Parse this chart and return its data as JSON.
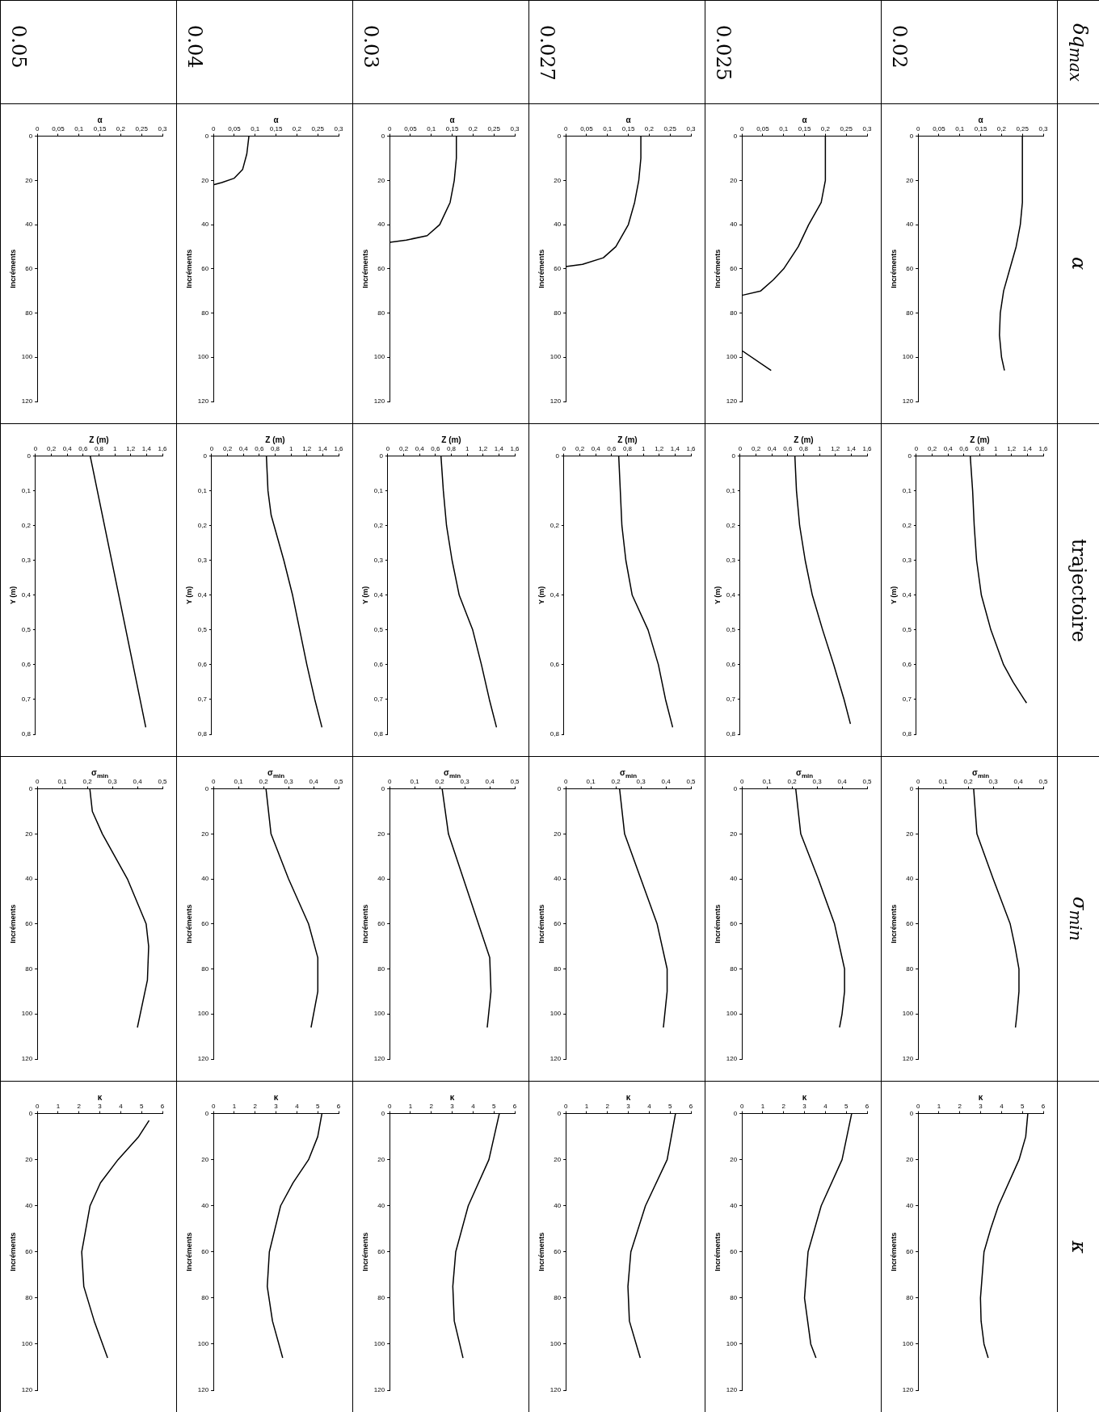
{
  "chart_data": [
    {
      "type": "other",
      "annotations": [
        "δq$_{max}$",
        "α",
        "trajectoire",
        "σ$_{min}$",
        "κ",
        "0.02",
        "0.025",
        "0.027",
        "0.03",
        "0.04",
        "0.05"
      ]
    },
    {
      "type": "line",
      "ylabel": "Incréments",
      "xlabel": "α",
      "color": "#000000",
      "ylim": [
        120,
        0
      ],
      "yticks": [
        0,
        20,
        40,
        60,
        80,
        100,
        120
      ],
      "xlim": [
        0,
        0.3
      ],
      "xticks": [
        0,
        {
          "value": 0.05,
          "label": "0,05"
        },
        {
          "value": 0.1,
          "label": "0,1"
        },
        {
          "value": 0.15,
          "label": "0,15"
        },
        {
          "value": 0.2,
          "label": "0,2"
        },
        {
          "value": 0.25,
          "label": "0,25"
        },
        {
          "value": 0.3,
          "label": "0,3"
        }
      ],
      "values": [
        0,
        30,
        40,
        50,
        60,
        70,
        80,
        90,
        100,
        106
      ],
      "x": [
        0.25,
        0.25,
        0.245,
        0.235,
        0.22,
        0.205,
        0.197,
        0.195,
        0.2,
        0.207
      ]
    },
    {
      "type": "line",
      "ylabel": "Y (m)",
      "xlabel": "Z (m)",
      "color": "#000000",
      "ylim": [
        0.8,
        0
      ],
      "yticks": [
        0,
        {
          "value": 0.1,
          "label": "0,1"
        },
        {
          "value": 0.2,
          "label": "0,2"
        },
        {
          "value": 0.3,
          "label": "0,3"
        },
        {
          "value": 0.4,
          "label": "0,4"
        },
        {
          "value": 0.5,
          "label": "0,5"
        },
        {
          "value": 0.6,
          "label": "0,6"
        },
        {
          "value": 0.7,
          "label": "0,7"
        },
        {
          "value": 0.8,
          "label": "0,8"
        }
      ],
      "xlim": [
        0,
        1.6
      ],
      "xticks": [
        0,
        {
          "value": 0.2,
          "label": "0,2"
        },
        {
          "value": 0.4,
          "label": "0,4"
        },
        {
          "value": 0.6,
          "label": "0,6"
        },
        {
          "value": 0.8,
          "label": "0,8"
        },
        1,
        {
          "value": 1.2,
          "label": "1,2"
        },
        {
          "value": 1.4,
          "label": "1,4"
        },
        {
          "value": 1.6,
          "label": "1,6"
        }
      ],
      "values": [
        0,
        0.1,
        0.2,
        0.3,
        0.4,
        0.5,
        0.6,
        0.65,
        0.7,
        0.71
      ],
      "x": [
        0.68,
        0.71,
        0.73,
        0.76,
        0.82,
        0.94,
        1.1,
        1.22,
        1.36,
        1.39
      ]
    },
    {
      "type": "line",
      "ylabel": "Incréments",
      "xlabel": "σ$_{min}$",
      "color": "#000000",
      "ylim": [
        120,
        0
      ],
      "yticks": [
        0,
        20,
        40,
        60,
        80,
        100,
        120
      ],
      "xlim": [
        0,
        0.5
      ],
      "xticks": [
        0,
        {
          "value": 0.1,
          "label": "0,1"
        },
        {
          "value": 0.2,
          "label": "0,2"
        },
        {
          "value": 0.3,
          "label": "0,3"
        },
        {
          "value": 0.4,
          "label": "0,4"
        },
        {
          "value": 0.5,
          "label": "0,5"
        }
      ],
      "values": [
        0,
        20,
        40,
        60,
        70,
        80,
        90,
        100,
        106
      ],
      "x": [
        0.222,
        0.235,
        0.3,
        0.368,
        0.387,
        0.403,
        0.403,
        0.395,
        0.389
      ]
    },
    {
      "type": "line",
      "ylabel": "Incréments",
      "xlabel": "κ",
      "color": "#000000",
      "ylim": [
        120,
        0
      ],
      "yticks": [
        0,
        20,
        40,
        60,
        80,
        100,
        120
      ],
      "xlim": [
        0,
        6
      ],
      "xticks": [
        0,
        1,
        2,
        3,
        4,
        5,
        6
      ],
      "values": [
        0,
        10,
        20,
        40,
        50,
        60,
        80,
        90,
        100,
        106
      ],
      "x": [
        5.26,
        5.16,
        4.84,
        3.85,
        3.48,
        3.16,
        2.99,
        3.02,
        3.16,
        3.36
      ]
    },
    {
      "type": "line",
      "ylabel": "Incréments",
      "xlabel": "α",
      "color": "#000000",
      "ylim": [
        120,
        0
      ],
      "yticks": [
        0,
        20,
        40,
        60,
        80,
        100,
        120
      ],
      "xlim": [
        0,
        0.3
      ],
      "xticks": [
        0,
        {
          "value": 0.05,
          "label": "0,05"
        },
        {
          "value": 0.1,
          "label": "0,1"
        },
        {
          "value": 0.15,
          "label": "0,15"
        },
        {
          "value": 0.2,
          "label": "0,2"
        },
        {
          "value": 0.25,
          "label": "0,25"
        },
        {
          "value": 0.3,
          "label": "0,3"
        }
      ],
      "values": [
        0,
        20,
        30,
        40,
        50,
        60,
        65,
        70,
        72,
        null,
        97,
        106
      ],
      "x": [
        0.2,
        0.2,
        0.19,
        0.16,
        0.135,
        0.1,
        0.075,
        0.045,
        0,
        null,
        0,
        0.07
      ]
    },
    {
      "type": "line",
      "ylabel": "Y (m)",
      "xlabel": "Z (m)",
      "color": "#000000",
      "ylim": [
        0.8,
        0
      ],
      "yticks": [
        0,
        {
          "value": 0.1,
          "label": "0,1"
        },
        {
          "value": 0.2,
          "label": "0,2"
        },
        {
          "value": 0.3,
          "label": "0,3"
        },
        {
          "value": 0.4,
          "label": "0,4"
        },
        {
          "value": 0.5,
          "label": "0,5"
        },
        {
          "value": 0.6,
          "label": "0,6"
        },
        {
          "value": 0.7,
          "label": "0,7"
        },
        {
          "value": 0.8,
          "label": "0,8"
        }
      ],
      "xlim": [
        0,
        1.6
      ],
      "xticks": [
        0,
        {
          "value": 0.2,
          "label": "0,2"
        },
        {
          "value": 0.4,
          "label": "0,4"
        },
        {
          "value": 0.6,
          "label": "0,6"
        },
        {
          "value": 0.8,
          "label": "0,8"
        },
        1,
        {
          "value": 1.2,
          "label": "1,2"
        },
        {
          "value": 1.4,
          "label": "1,4"
        },
        {
          "value": 1.6,
          "label": "1,6"
        }
      ],
      "values": [
        0,
        0.1,
        0.2,
        0.3,
        0.4,
        0.5,
        0.6,
        0.7,
        0.77
      ],
      "x": [
        0.69,
        0.71,
        0.75,
        0.82,
        0.91,
        1.04,
        1.18,
        1.31,
        1.39
      ]
    },
    {
      "type": "line",
      "ylabel": "Incréments",
      "xlabel": "σ$_{min}$",
      "color": "#000000",
      "ylim": [
        120,
        0
      ],
      "yticks": [
        0,
        20,
        40,
        60,
        80,
        100,
        120
      ],
      "xlim": [
        0,
        0.5
      ],
      "xticks": [
        0,
        {
          "value": 0.1,
          "label": "0,1"
        },
        {
          "value": 0.2,
          "label": "0,2"
        },
        {
          "value": 0.3,
          "label": "0,3"
        },
        {
          "value": 0.4,
          "label": "0,4"
        },
        {
          "value": 0.5,
          "label": "0,5"
        }
      ],
      "values": [
        0,
        20,
        40,
        60,
        80,
        90,
        100,
        106
      ],
      "x": [
        0.215,
        0.235,
        0.305,
        0.37,
        0.41,
        0.41,
        0.4,
        0.39
      ]
    },
    {
      "type": "line",
      "ylabel": "Incréments",
      "xlabel": "κ",
      "color": "#000000",
      "ylim": [
        120,
        0
      ],
      "yticks": [
        0,
        20,
        40,
        60,
        80,
        100,
        120
      ],
      "xlim": [
        0,
        6
      ],
      "xticks": [
        0,
        1,
        2,
        3,
        4,
        5,
        6
      ],
      "values": [
        0,
        20,
        40,
        60,
        80,
        100,
        106
      ],
      "x": [
        5.26,
        4.8,
        3.8,
        3.17,
        3.0,
        3.3,
        3.55
      ]
    },
    {
      "type": "line",
      "ylabel": "Incréments",
      "xlabel": "α",
      "color": "#000000",
      "ylim": [
        120,
        0
      ],
      "yticks": [
        0,
        20,
        40,
        60,
        80,
        100,
        120
      ],
      "xlim": [
        0,
        0.3
      ],
      "xticks": [
        0,
        {
          "value": 0.05,
          "label": "0,05"
        },
        {
          "value": 0.1,
          "label": "0,1"
        },
        {
          "value": 0.15,
          "label": "0,15"
        },
        {
          "value": 0.2,
          "label": "0,2"
        },
        {
          "value": 0.25,
          "label": "0,25"
        },
        {
          "value": 0.3,
          "label": "0,3"
        }
      ],
      "values": [
        0,
        10,
        20,
        30,
        40,
        50,
        55,
        58,
        59
      ],
      "x": [
        0.18,
        0.18,
        0.175,
        0.165,
        0.15,
        0.12,
        0.09,
        0.04,
        0
      ]
    },
    {
      "type": "line",
      "ylabel": "Y (m)",
      "xlabel": "Z (m)",
      "color": "#000000",
      "ylim": [
        0.8,
        0
      ],
      "yticks": [
        0,
        {
          "value": 0.2,
          "label": "0,2"
        },
        {
          "value": 0.4,
          "label": "0,4"
        },
        {
          "value": 0.6,
          "label": "0,6"
        },
        {
          "value": 0.8,
          "label": "0,8"
        }
      ],
      "xlim": [
        0,
        1.6
      ],
      "xticks": [
        0,
        {
          "value": 0.2,
          "label": "0,2"
        },
        {
          "value": 0.4,
          "label": "0,4"
        },
        {
          "value": 0.6,
          "label": "0,6"
        },
        {
          "value": 0.8,
          "label": "0,8"
        },
        1,
        {
          "value": 1.2,
          "label": "1,2"
        },
        {
          "value": 1.4,
          "label": "1,4"
        },
        {
          "value": 1.6,
          "label": "1,6"
        }
      ],
      "values": [
        0,
        0.2,
        0.3,
        0.4,
        0.5,
        0.6,
        0.7,
        0.78
      ],
      "x": [
        0.69,
        0.73,
        0.78,
        0.86,
        1.06,
        1.19,
        1.28,
        1.37
      ]
    },
    {
      "type": "line",
      "ylabel": "Incréments",
      "xlabel": "σ$_{min}$",
      "color": "#000000",
      "ylim": [
        120,
        0
      ],
      "yticks": [
        0,
        20,
        40,
        60,
        80,
        100,
        120
      ],
      "xlim": [
        0,
        0.5
      ],
      "xticks": [
        0,
        {
          "value": 0.1,
          "label": "0,1"
        },
        {
          "value": 0.2,
          "label": "0,2"
        },
        {
          "value": 0.3,
          "label": "0,3"
        },
        {
          "value": 0.4,
          "label": "0,4"
        },
        {
          "value": 0.5,
          "label": "0,5"
        }
      ],
      "values": [
        0,
        20,
        40,
        60,
        80,
        90,
        106
      ],
      "x": [
        0.215,
        0.235,
        0.3,
        0.365,
        0.405,
        0.405,
        0.39
      ]
    },
    {
      "type": "line",
      "ylabel": "Incréments",
      "xlabel": "κ",
      "color": "#000000",
      "ylim": [
        120,
        0
      ],
      "yticks": [
        0,
        20,
        40,
        60,
        80,
        100,
        120
      ],
      "xlim": [
        0,
        6
      ],
      "xticks": [
        0,
        1,
        2,
        3,
        4,
        5,
        6
      ],
      "values": [
        0,
        20,
        40,
        60,
        75,
        90,
        106
      ],
      "x": [
        5.26,
        4.86,
        3.82,
        3.12,
        2.98,
        3.05,
        3.57
      ]
    },
    {
      "type": "line",
      "ylabel": "Incréments",
      "xlabel": "α",
      "color": "#000000",
      "ylim": [
        120,
        0
      ],
      "yticks": [
        0,
        20,
        40,
        60,
        80,
        100,
        120
      ],
      "xlim": [
        0,
        0.3
      ],
      "xticks": [
        0,
        {
          "value": 0.05,
          "label": "0,05"
        },
        {
          "value": 0.1,
          "label": "0,1"
        },
        {
          "value": 0.15,
          "label": "0,15"
        },
        {
          "value": 0.2,
          "label": "0,2"
        },
        {
          "value": 0.25,
          "label": "0,25"
        },
        {
          "value": 0.3,
          "label": "0,3"
        }
      ],
      "values": [
        0,
        10,
        20,
        30,
        40,
        45,
        47,
        48
      ],
      "x": [
        0.16,
        0.16,
        0.155,
        0.145,
        0.12,
        0.09,
        0.04,
        0
      ]
    },
    {
      "type": "line",
      "ylabel": "Y (m)",
      "xlabel": "Z (m)",
      "color": "#000000",
      "ylim": [
        0.8,
        0
      ],
      "yticks": [
        0,
        {
          "value": 0.1,
          "label": "0,1"
        },
        {
          "value": 0.2,
          "label": "0,2"
        },
        {
          "value": 0.3,
          "label": "0,3"
        },
        {
          "value": 0.4,
          "label": "0,4"
        },
        {
          "value": 0.5,
          "label": "0,5"
        },
        {
          "value": 0.6,
          "label": "0,6"
        },
        {
          "value": 0.7,
          "label": "0,7"
        },
        {
          "value": 0.8,
          "label": "0,8"
        }
      ],
      "xlim": [
        0,
        1.6
      ],
      "xticks": [
        0,
        {
          "value": 0.2,
          "label": "0,2"
        },
        {
          "value": 0.4,
          "label": "0,4"
        },
        {
          "value": 0.6,
          "label": "0,6"
        },
        {
          "value": 0.8,
          "label": "0,8"
        },
        1,
        {
          "value": 1.2,
          "label": "1,2"
        },
        {
          "value": 1.4,
          "label": "1,4"
        },
        {
          "value": 1.6,
          "label": "1,6"
        }
      ],
      "values": [
        0,
        0.1,
        0.2,
        0.3,
        0.4,
        0.5,
        0.6,
        0.7,
        0.78
      ],
      "x": [
        0.67,
        0.7,
        0.74,
        0.81,
        0.9,
        1.07,
        1.18,
        1.28,
        1.37
      ]
    },
    {
      "type": "line",
      "ylabel": "Incréments",
      "xlabel": "σ$_{min}$",
      "color": "#000000",
      "ylim": [
        120,
        0
      ],
      "yticks": [
        0,
        20,
        40,
        60,
        80,
        100,
        120
      ],
      "xlim": [
        0,
        0.5
      ],
      "xticks": [
        0,
        {
          "value": 0.1,
          "label": "0,1"
        },
        {
          "value": 0.2,
          "label": "0,2"
        },
        {
          "value": 0.3,
          "label": "0,3"
        },
        {
          "value": 0.4,
          "label": "0,4"
        },
        {
          "value": 0.5,
          "label": "0,5"
        }
      ],
      "values": [
        0,
        20,
        40,
        60,
        75,
        90,
        106
      ],
      "x": [
        0.21,
        0.235,
        0.295,
        0.355,
        0.4,
        0.405,
        0.39
      ]
    },
    {
      "type": "line",
      "ylabel": "Incréments",
      "xlabel": "κ",
      "color": "#000000",
      "ylim": [
        120,
        0
      ],
      "yticks": [
        0,
        20,
        40,
        60,
        80,
        100,
        120
      ],
      "xlim": [
        0,
        6
      ],
      "xticks": [
        0,
        1,
        2,
        3,
        4,
        5,
        6
      ],
      "values": [
        0,
        20,
        40,
        60,
        75,
        90,
        106
      ],
      "x": [
        5.26,
        4.76,
        3.77,
        3.17,
        3.03,
        3.1,
        3.52
      ]
    },
    {
      "type": "line",
      "ylabel": "Incréments",
      "xlabel": "α",
      "color": "#000000",
      "ylim": [
        120,
        0
      ],
      "yticks": [
        0,
        20,
        40,
        60,
        80,
        100,
        120
      ],
      "xlim": [
        0,
        0.3
      ],
      "xticks": [
        0,
        {
          "value": 0.05,
          "label": "0,05"
        },
        {
          "value": 0.1,
          "label": "0,1"
        },
        {
          "value": 0.15,
          "label": "0,15"
        },
        {
          "value": 0.2,
          "label": "0,2"
        },
        {
          "value": 0.25,
          "label": "0,25"
        },
        {
          "value": 0.3,
          "label": "0,3"
        }
      ],
      "values": [
        0,
        8,
        15,
        19,
        21,
        22
      ],
      "x": [
        0.085,
        0.08,
        0.07,
        0.05,
        0.02,
        0
      ]
    },
    {
      "type": "line",
      "ylabel": "Y (m)",
      "xlabel": "Z (m)",
      "color": "#000000",
      "ylim": [
        0.8,
        0
      ],
      "yticks": [
        0,
        {
          "value": 0.1,
          "label": "0,1"
        },
        {
          "value": 0.2,
          "label": "0,2"
        },
        {
          "value": 0.3,
          "label": "0,3"
        },
        {
          "value": 0.4,
          "label": "0,4"
        },
        {
          "value": 0.5,
          "label": "0,5"
        },
        {
          "value": 0.6,
          "label": "0,6"
        },
        {
          "value": 0.7,
          "label": "0,7"
        },
        {
          "value": 0.8,
          "label": "0,8"
        }
      ],
      "xlim": [
        0,
        1.6
      ],
      "xticks": [
        0,
        {
          "value": 0.2,
          "label": "0,2"
        },
        {
          "value": 0.4,
          "label": "0,4"
        },
        {
          "value": 0.6,
          "label": "0,6"
        },
        {
          "value": 0.8,
          "label": "0,8"
        },
        1,
        {
          "value": 1.2,
          "label": "1,2"
        },
        {
          "value": 1.4,
          "label": "1,4"
        },
        {
          "value": 1.6,
          "label": "1,6"
        }
      ],
      "values": [
        0,
        0.1,
        0.17,
        0.3,
        0.4,
        0.5,
        0.6,
        0.7,
        0.78
      ],
      "x": [
        0.69,
        0.71,
        0.75,
        0.91,
        1.02,
        1.11,
        1.2,
        1.3,
        1.39
      ]
    },
    {
      "type": "line",
      "ylabel": "Incréments",
      "xlabel": "σ$_{min}$",
      "color": "#000000",
      "ylim": [
        120,
        0
      ],
      "yticks": [
        0,
        20,
        40,
        60,
        80,
        100,
        120
      ],
      "xlim": [
        0,
        0.5
      ],
      "xticks": [
        0,
        {
          "value": 0.1,
          "label": "0,1"
        },
        {
          "value": 0.2,
          "label": "0,2"
        },
        {
          "value": 0.3,
          "label": "0,3"
        },
        {
          "value": 0.4,
          "label": "0,4"
        },
        {
          "value": 0.5,
          "label": "0,5"
        }
      ],
      "values": [
        0,
        20,
        40,
        60,
        75,
        90,
        106
      ],
      "x": [
        0.21,
        0.23,
        0.3,
        0.38,
        0.417,
        0.417,
        0.39
      ]
    },
    {
      "type": "line",
      "ylabel": "Incréments",
      "xlabel": "κ",
      "color": "#000000",
      "ylim": [
        120,
        0
      ],
      "yticks": [
        0,
        20,
        40,
        60,
        80,
        100,
        120
      ],
      "xlim": [
        0,
        6
      ],
      "xticks": [
        0,
        1,
        2,
        3,
        4,
        5,
        6
      ],
      "values": [
        0,
        10,
        20,
        30,
        40,
        60,
        75,
        90,
        106
      ],
      "x": [
        5.2,
        5.0,
        4.56,
        3.82,
        3.22,
        2.68,
        2.58,
        2.83,
        3.32
      ]
    },
    {
      "type": "line",
      "ylabel": "Incréments",
      "xlabel": "α",
      "color": "#000000",
      "ylim": [
        120,
        0
      ],
      "yticks": [
        0,
        20,
        40,
        60,
        80,
        100,
        120
      ],
      "xlim": [
        0,
        0.3
      ],
      "xticks": [
        0,
        {
          "value": 0.05,
          "label": "0,05"
        },
        {
          "value": 0.1,
          "label": "0,1"
        },
        {
          "value": 0.15,
          "label": "0,15"
        },
        {
          "value": 0.2,
          "label": "0,2"
        },
        {
          "value": 0.25,
          "label": "0,25"
        },
        {
          "value": 0.3,
          "label": "0,3"
        }
      ]
    },
    {
      "type": "line",
      "ylabel": "Y (m)",
      "xlabel": "Z (m)",
      "color": "#000000",
      "ylim": [
        0.8,
        0
      ],
      "yticks": [
        0,
        {
          "value": 0.1,
          "label": "0,1"
        },
        {
          "value": 0.2,
          "label": "0,2"
        },
        {
          "value": 0.3,
          "label": "0,3"
        },
        {
          "value": 0.4,
          "label": "0,4"
        },
        {
          "value": 0.5,
          "label": "0,5"
        },
        {
          "value": 0.6,
          "label": "0,6"
        },
        {
          "value": 0.7,
          "label": "0,7"
        },
        {
          "value": 0.8,
          "label": "0,8"
        }
      ],
      "xlim": [
        0,
        1.6
      ],
      "xticks": [
        0,
        {
          "value": 0.2,
          "label": "0,2"
        },
        {
          "value": 0.4,
          "label": "0,4"
        },
        {
          "value": 0.6,
          "label": "0,6"
        },
        {
          "value": 0.8,
          "label": "0,8"
        },
        1,
        {
          "value": 1.2,
          "label": "1,2"
        },
        {
          "value": 1.4,
          "label": "1,4"
        },
        {
          "value": 1.6,
          "label": "1,6"
        }
      ],
      "values": [
        0,
        0.4,
        0.78
      ],
      "x": [
        0.69,
        1.05,
        1.39
      ]
    },
    {
      "type": "line",
      "ylabel": "Incréments",
      "xlabel": "σ$_{min}$",
      "color": "#000000",
      "ylim": [
        120,
        0
      ],
      "yticks": [
        0,
        20,
        40,
        60,
        80,
        100,
        120
      ],
      "xlim": [
        0,
        0.5
      ],
      "xticks": [
        0,
        {
          "value": 0.1,
          "label": "0,1"
        },
        {
          "value": 0.2,
          "label": "0,2"
        },
        {
          "value": 0.3,
          "label": "0,3"
        },
        {
          "value": 0.4,
          "label": "0,4"
        },
        {
          "value": 0.5,
          "label": "0,5"
        }
      ],
      "values": [
        0,
        10,
        20,
        40,
        60,
        70,
        85,
        106
      ],
      "x": [
        0.21,
        0.22,
        0.26,
        0.36,
        0.435,
        0.445,
        0.44,
        0.4
      ]
    },
    {
      "type": "line",
      "ylabel": "Incréments",
      "xlabel": "κ",
      "color": "#000000",
      "ylim": [
        120,
        0
      ],
      "yticks": [
        0,
        20,
        40,
        60,
        80,
        100,
        120
      ],
      "xlim": [
        0,
        6
      ],
      "xticks": [
        0,
        1,
        2,
        3,
        4,
        5,
        6
      ],
      "values": [
        3,
        10,
        20,
        30,
        40,
        60,
        75,
        90,
        106
      ],
      "x": [
        5.36,
        4.86,
        3.87,
        3.03,
        2.53,
        2.13,
        2.23,
        2.73,
        3.37
      ]
    }
  ]
}
